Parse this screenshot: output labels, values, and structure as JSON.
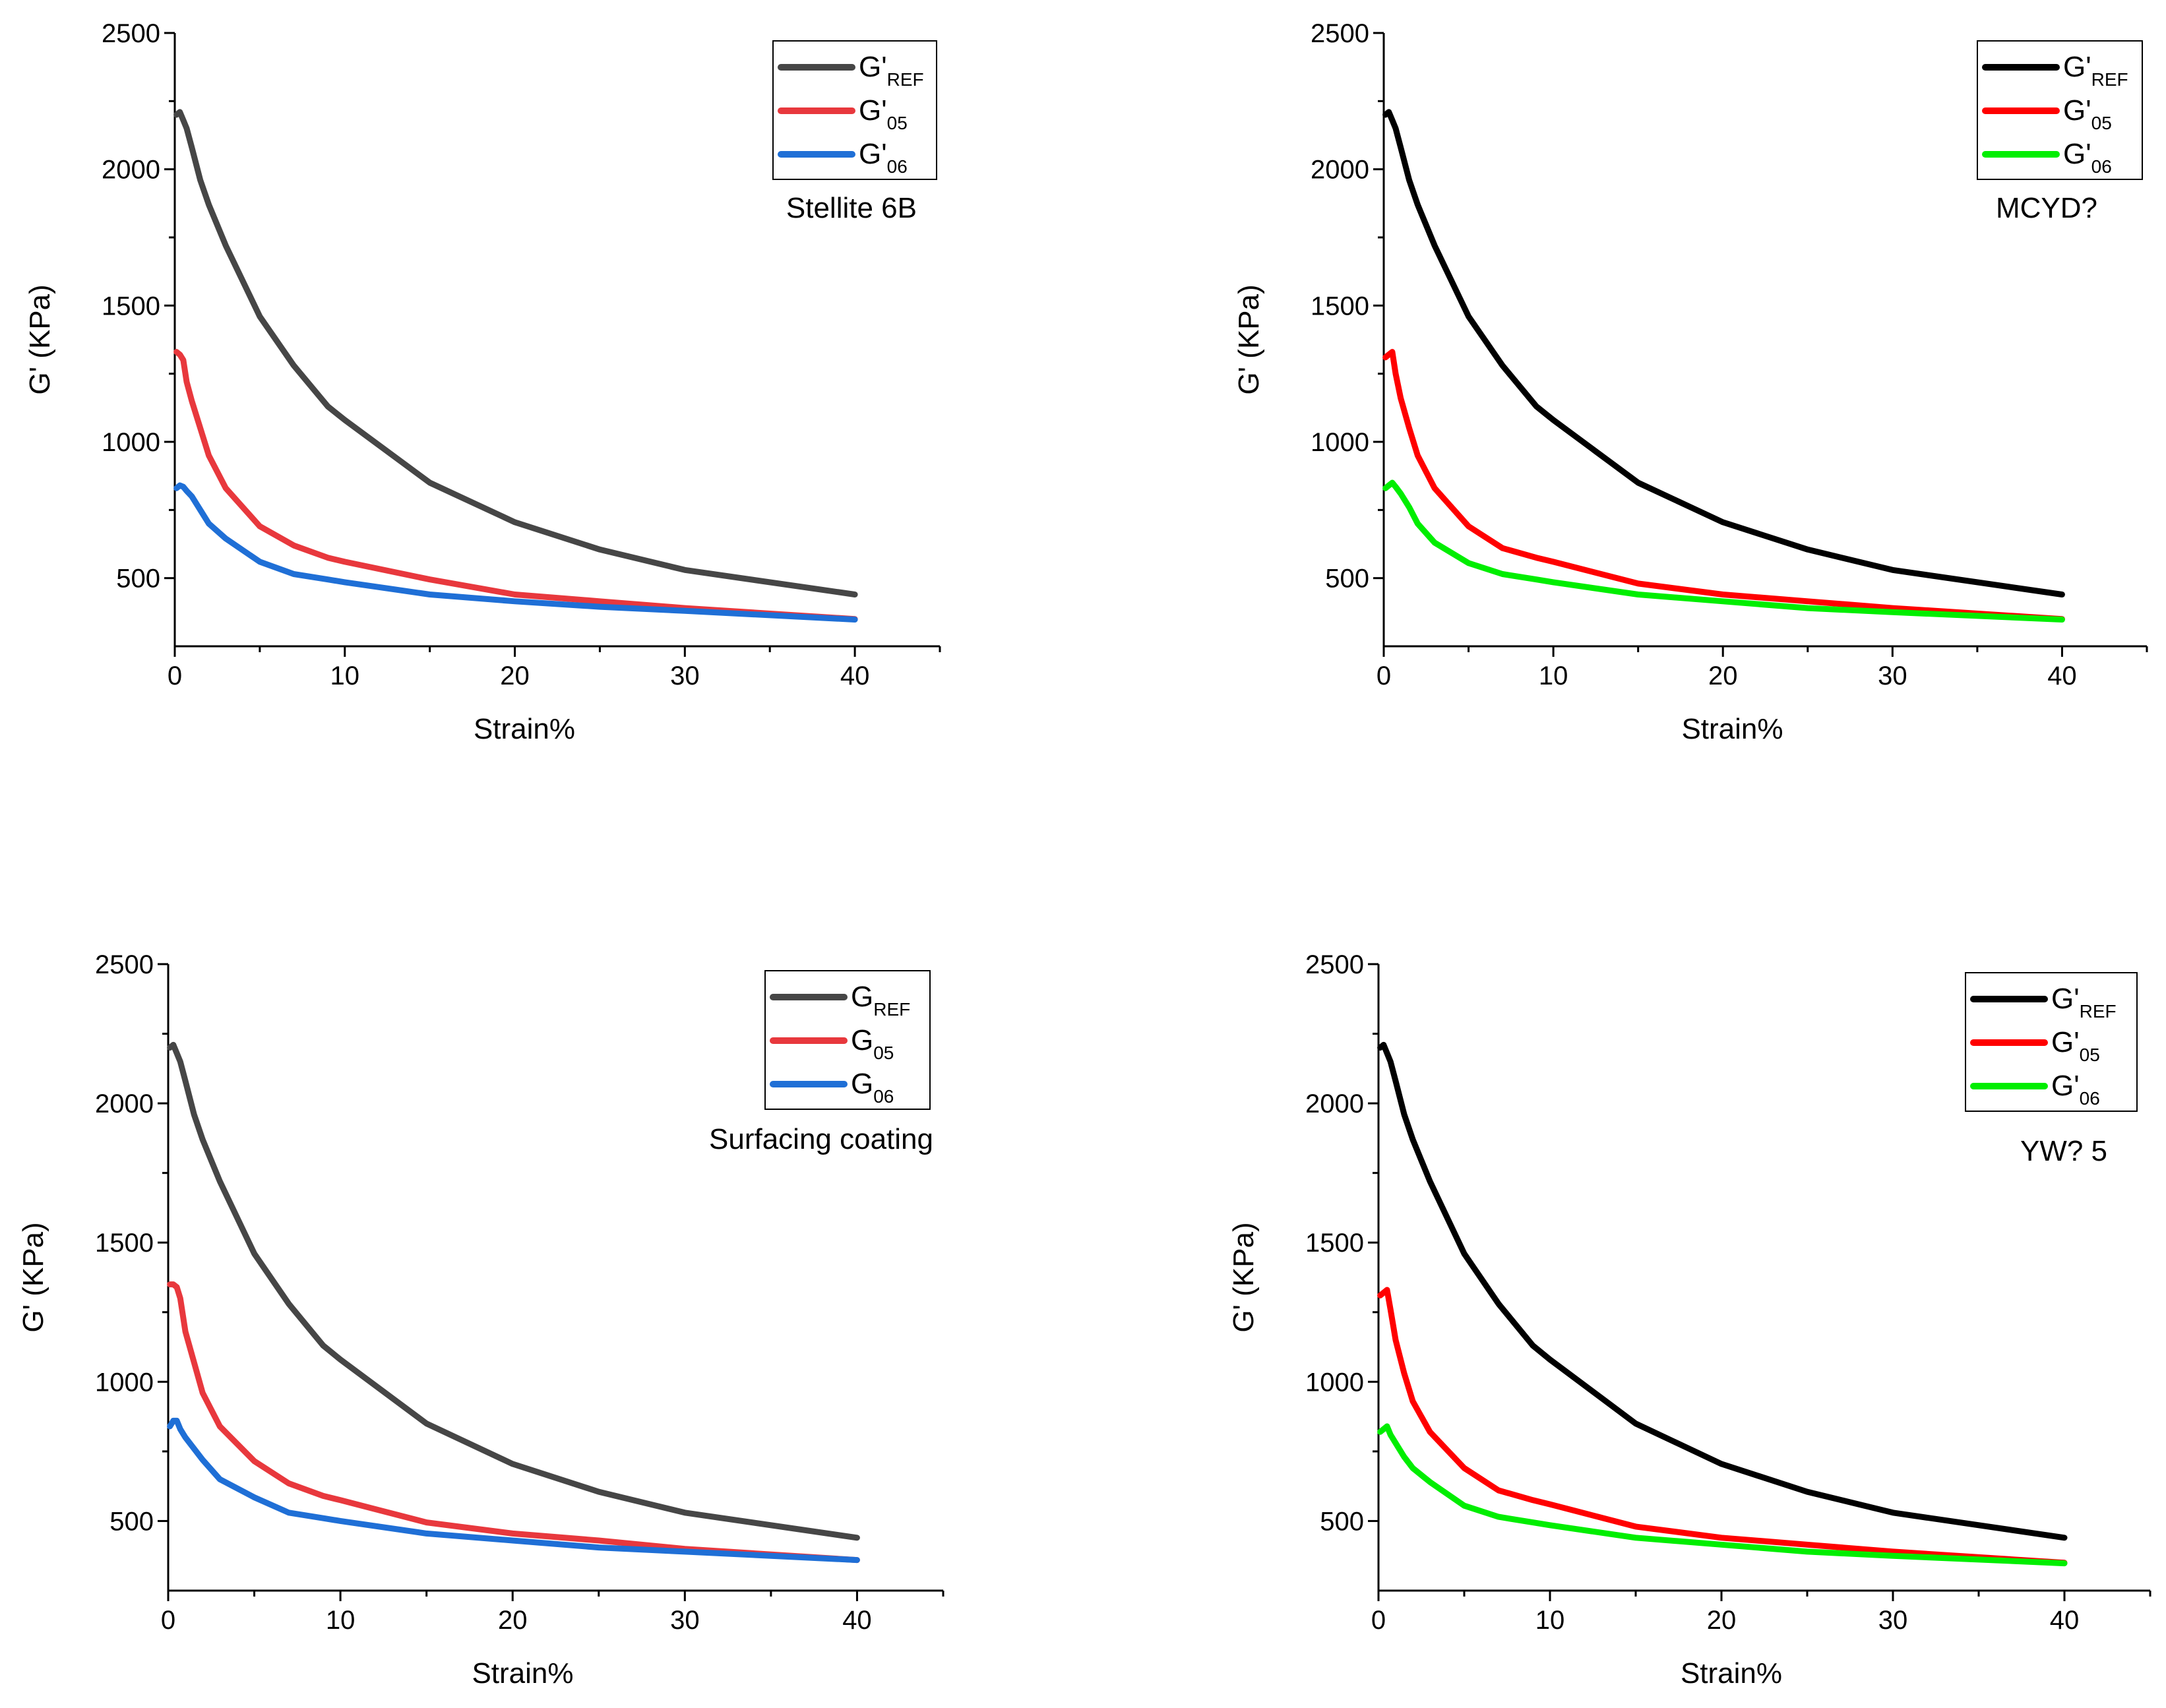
{
  "chart_data": [
    {
      "type": "line",
      "ylabel": "G' (KPa)",
      "xlabel": "Strain%",
      "xlim": [
        0,
        45
      ],
      "ylim": [
        250,
        2500
      ],
      "xticks": [
        0,
        10,
        20,
        30,
        40
      ],
      "yticks": [
        500,
        1000,
        1500,
        2000,
        2500
      ],
      "legend_position": "top-right",
      "annotation": "Stellite 6B",
      "series": [
        {
          "name_main": "G'",
          "name_sub": "REF",
          "color": "#464646",
          "x": [
            0.1,
            0.3,
            0.5,
            0.7,
            1,
            1.5,
            2,
            3,
            5,
            7,
            9,
            10,
            15,
            20,
            25,
            30,
            40
          ],
          "y": [
            2200,
            2210,
            2180,
            2150,
            2080,
            1960,
            1870,
            1720,
            1460,
            1280,
            1130,
            1080,
            850,
            705,
            605,
            530,
            440
          ]
        },
        {
          "name_main": "G'",
          "name_sub": "05",
          "color": "#e8383d",
          "x": [
            0.1,
            0.3,
            0.5,
            0.7,
            1,
            1.5,
            2,
            3,
            5,
            7,
            9,
            10,
            15,
            20,
            25,
            30,
            40
          ],
          "y": [
            1330,
            1320,
            1300,
            1220,
            1150,
            1050,
            950,
            830,
            690,
            620,
            575,
            560,
            495,
            440,
            415,
            390,
            350
          ]
        },
        {
          "name_main": "G'",
          "name_sub": "06",
          "color": "#1f6fd6",
          "x": [
            0.1,
            0.3,
            0.5,
            0.7,
            1,
            1.5,
            2,
            3,
            5,
            7,
            9,
            10,
            15,
            20,
            25,
            30,
            40
          ],
          "y": [
            830,
            840,
            835,
            820,
            800,
            750,
            700,
            645,
            560,
            515,
            495,
            485,
            440,
            415,
            395,
            380,
            348
          ]
        }
      ]
    },
    {
      "type": "line",
      "ylabel": "G' (KPa)",
      "xlabel": "Strain%",
      "xlim": [
        0,
        45
      ],
      "ylim": [
        250,
        2500
      ],
      "xticks": [
        0,
        10,
        20,
        30,
        40
      ],
      "yticks": [
        500,
        1000,
        1500,
        2000,
        2500
      ],
      "legend_position": "top-right",
      "annotation": "MCYD?",
      "series": [
        {
          "name_main": "G'",
          "name_sub": "REF",
          "color": "#000000",
          "x": [
            0.1,
            0.3,
            0.5,
            0.7,
            1,
            1.5,
            2,
            3,
            5,
            7,
            9,
            10,
            15,
            20,
            25,
            30,
            40
          ],
          "y": [
            2200,
            2210,
            2180,
            2150,
            2080,
            1960,
            1870,
            1720,
            1460,
            1280,
            1130,
            1080,
            850,
            705,
            605,
            530,
            440
          ]
        },
        {
          "name_main": "G'",
          "name_sub": "05",
          "color": "#ff0000",
          "x": [
            0.1,
            0.3,
            0.5,
            0.7,
            1,
            1.5,
            2,
            3,
            5,
            7,
            9,
            10,
            15,
            20,
            25,
            30,
            40
          ],
          "y": [
            1310,
            1320,
            1330,
            1250,
            1160,
            1050,
            950,
            830,
            690,
            610,
            575,
            560,
            480,
            440,
            415,
            390,
            350
          ]
        },
        {
          "name_main": "G'",
          "name_sub": "06",
          "color": "#00ee00",
          "x": [
            0.1,
            0.3,
            0.5,
            0.7,
            1,
            1.5,
            2,
            3,
            5,
            7,
            9,
            10,
            15,
            20,
            25,
            30,
            40
          ],
          "y": [
            830,
            840,
            850,
            835,
            810,
            760,
            700,
            630,
            555,
            515,
            495,
            485,
            440,
            415,
            390,
            375,
            348
          ]
        }
      ]
    },
    {
      "type": "line",
      "ylabel": "G' (KPa)",
      "xlabel": "Strain%",
      "xlim": [
        0,
        45
      ],
      "ylim": [
        250,
        2500
      ],
      "xticks": [
        0,
        10,
        20,
        30,
        40
      ],
      "yticks": [
        500,
        1000,
        1500,
        2000,
        2500
      ],
      "legend_position": "top-right",
      "annotation": "Surfacing coating",
      "series": [
        {
          "name_main": "G",
          "name_sub": "REF",
          "color": "#464646",
          "x": [
            0.1,
            0.3,
            0.5,
            0.7,
            1,
            1.5,
            2,
            3,
            5,
            7,
            9,
            10,
            15,
            20,
            25,
            30,
            40
          ],
          "y": [
            2200,
            2210,
            2180,
            2150,
            2080,
            1960,
            1870,
            1720,
            1460,
            1280,
            1130,
            1080,
            850,
            705,
            605,
            530,
            440
          ]
        },
        {
          "name_main": "G",
          "name_sub": "05",
          "color": "#e8383d",
          "x": [
            0.1,
            0.3,
            0.5,
            0.7,
            1,
            1.5,
            2,
            3,
            5,
            7,
            9,
            10,
            15,
            20,
            25,
            30,
            40
          ],
          "y": [
            1350,
            1350,
            1340,
            1300,
            1180,
            1070,
            960,
            840,
            715,
            635,
            590,
            575,
            495,
            455,
            430,
            400,
            360
          ]
        },
        {
          "name_main": "G",
          "name_sub": "06",
          "color": "#1f6fd6",
          "x": [
            0.1,
            0.3,
            0.5,
            0.7,
            1,
            1.5,
            2,
            3,
            5,
            7,
            9,
            10,
            15,
            20,
            25,
            30,
            40
          ],
          "y": [
            840,
            860,
            860,
            830,
            800,
            760,
            720,
            650,
            585,
            530,
            510,
            500,
            455,
            430,
            405,
            390,
            360
          ]
        }
      ]
    },
    {
      "type": "line",
      "ylabel": "G' (KPa)",
      "xlabel": "Strain%",
      "xlim": [
        0,
        45
      ],
      "ylim": [
        250,
        2500
      ],
      "xticks": [
        0,
        10,
        20,
        30,
        40
      ],
      "yticks": [
        500,
        1000,
        1500,
        2000,
        2500
      ],
      "legend_position": "top-right",
      "annotation": "YW?    5",
      "series": [
        {
          "name_main": "G'",
          "name_sub": "REF",
          "color": "#000000",
          "x": [
            0.1,
            0.3,
            0.5,
            0.7,
            1,
            1.5,
            2,
            3,
            5,
            7,
            9,
            10,
            15,
            20,
            25,
            30,
            40
          ],
          "y": [
            2200,
            2210,
            2180,
            2150,
            2080,
            1960,
            1870,
            1720,
            1460,
            1280,
            1130,
            1080,
            850,
            705,
            605,
            530,
            440
          ]
        },
        {
          "name_main": "G'",
          "name_sub": "05",
          "color": "#ff0000",
          "x": [
            0.1,
            0.3,
            0.5,
            0.7,
            1,
            1.5,
            2,
            3,
            5,
            7,
            9,
            10,
            15,
            20,
            25,
            30,
            40
          ],
          "y": [
            1310,
            1320,
            1330,
            1260,
            1150,
            1030,
            930,
            820,
            690,
            610,
            575,
            560,
            480,
            440,
            415,
            390,
            350
          ]
        },
        {
          "name_main": "G'",
          "name_sub": "06",
          "color": "#00ee00",
          "x": [
            0.1,
            0.3,
            0.5,
            0.7,
            1,
            1.5,
            2,
            3,
            5,
            7,
            9,
            10,
            15,
            20,
            25,
            30,
            40
          ],
          "y": [
            820,
            830,
            840,
            810,
            780,
            730,
            690,
            640,
            555,
            515,
            495,
            485,
            440,
            415,
            390,
            375,
            348
          ]
        }
      ]
    }
  ]
}
